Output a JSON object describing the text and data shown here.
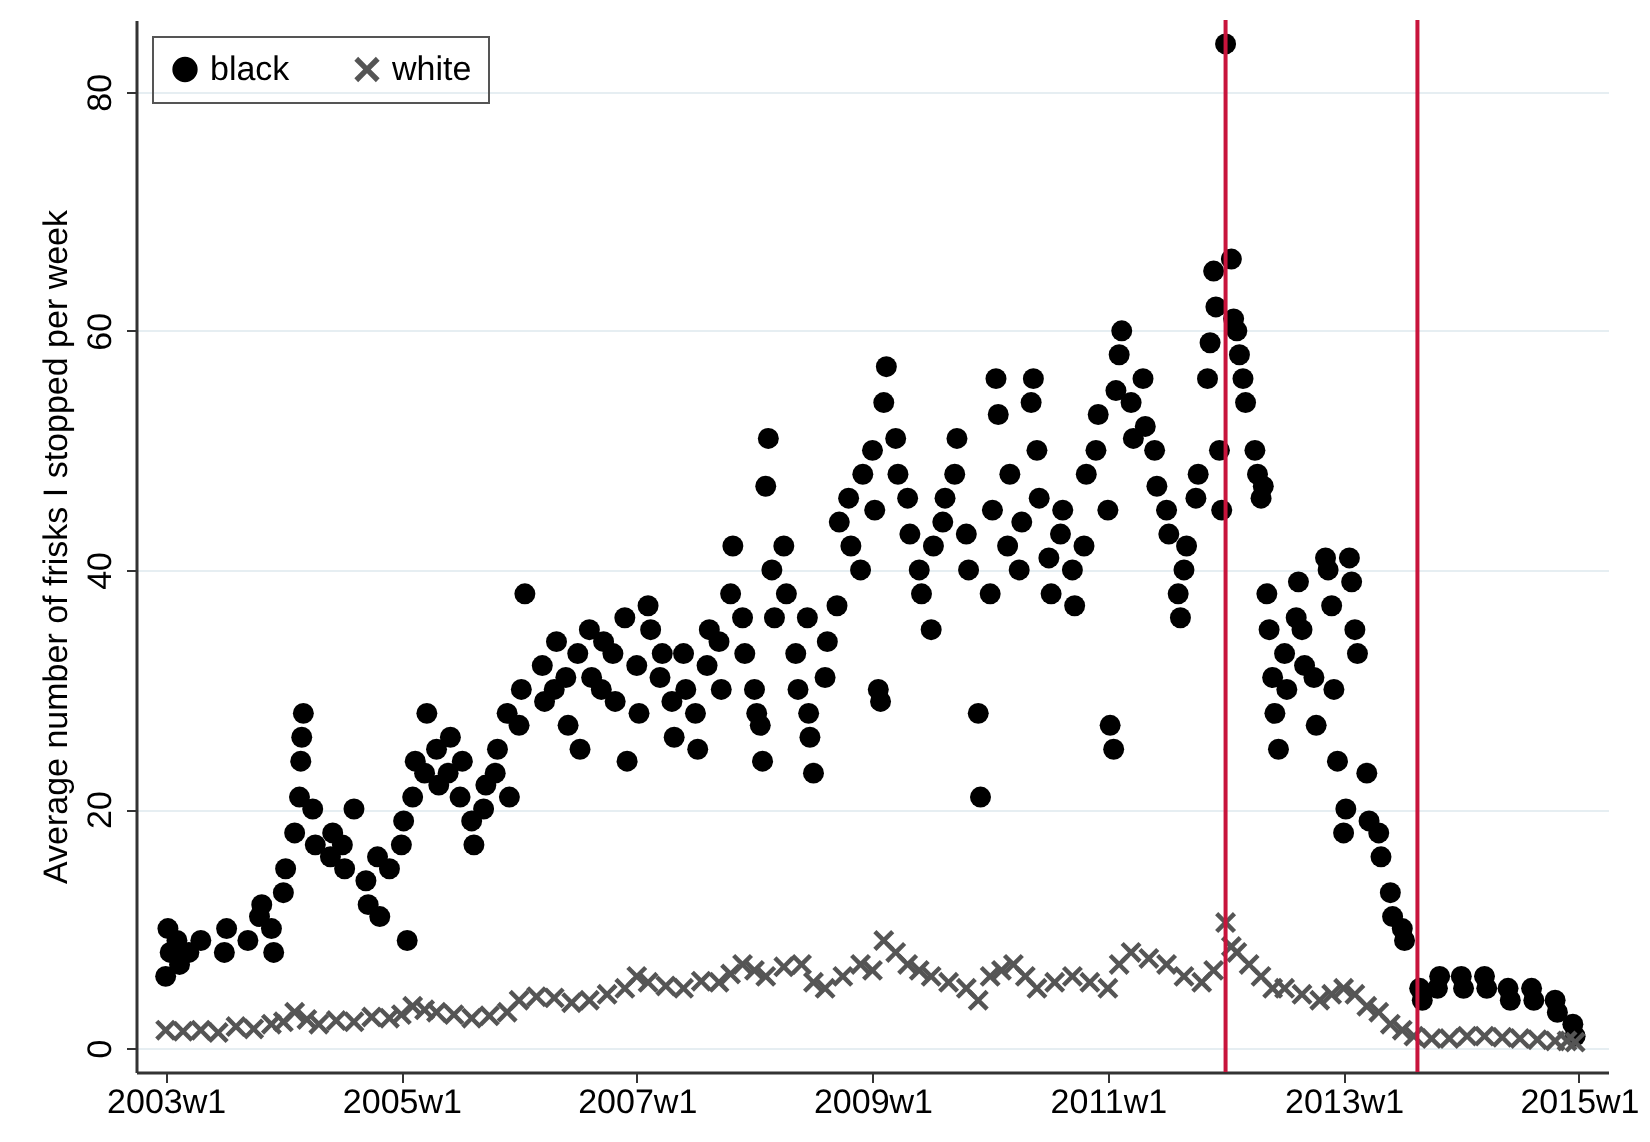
{
  "chart_data": {
    "type": "scatter",
    "ylabel": "Average number of frisks I stopped per week",
    "xlim": [
      "2002-10-01",
      "2015-04-01"
    ],
    "ylim": [
      -2,
      86
    ],
    "xticks": [
      {
        "value": "2003-01-01",
        "label": "2003w1"
      },
      {
        "value": "2005-01-01",
        "label": "2005w1"
      },
      {
        "value": "2007-01-01",
        "label": "2007w1"
      },
      {
        "value": "2009-01-01",
        "label": "2009w1"
      },
      {
        "value": "2011-01-01",
        "label": "2011w1"
      },
      {
        "value": "2013-01-01",
        "label": "2013w1"
      },
      {
        "value": "2015-01-01",
        "label": "2015w1"
      }
    ],
    "yticks": [
      0,
      20,
      40,
      60,
      80
    ],
    "grid": "y",
    "legend": "top left",
    "ref_lines": [
      {
        "axis": "x",
        "value": "2012-01-01",
        "color": "#c8143c"
      },
      {
        "axis": "x",
        "value": "2013-08-18",
        "color": "#c8143c"
      }
    ],
    "series": [
      {
        "name": "black",
        "color": "#000000",
        "marker": "circle",
        "x": [
          "2003-01-01",
          "2003-01-08",
          "2003-01-15",
          "2003-02-05",
          "2003-02-13",
          "2003-03-14",
          "2003-04-20",
          "2003-07-02",
          "2003-07-09",
          "2003-09-13",
          "2003-10-19",
          "2003-10-26",
          "2003-11-25",
          "2003-12-02",
          "2004-01-01",
          "2004-01-08",
          "2004-02-05",
          "2004-02-20",
          "2004-02-24",
          "2004-02-27",
          "2004-03-03",
          "2004-04-01",
          "2004-04-09",
          "2004-05-26",
          "2004-06-02",
          "2004-07-02",
          "2004-07-09",
          "2004-08-07",
          "2004-09-13",
          "2004-09-20",
          "2004-10-19",
          "2004-10-26",
          "2004-11-25",
          "2005-01-01",
          "2005-01-08",
          "2005-01-19",
          "2005-02-05",
          "2005-02-13",
          "2005-03-14",
          "2005-03-21",
          "2005-04-20",
          "2005-04-27",
          "2005-05-26",
          "2005-06-02",
          "2005-07-02",
          "2005-07-09",
          "2005-08-07",
          "2005-08-14",
          "2005-09-13",
          "2005-09-20",
          "2005-10-19",
          "2005-10-26",
          "2005-11-25",
          "2005-12-02",
          "2006-01-01",
          "2006-01-08",
          "2006-01-19",
          "2006-03-14",
          "2006-03-21",
          "2006-04-20",
          "2006-04-27",
          "2006-05-26",
          "2006-06-02",
          "2006-07-02",
          "2006-07-09",
          "2006-08-07",
          "2006-08-14",
          "2006-09-13",
          "2006-09-20",
          "2006-10-19",
          "2006-10-26",
          "2006-11-25",
          "2006-12-02",
          "2007-01-01",
          "2007-01-08",
          "2007-02-05",
          "2007-02-13",
          "2007-03-14",
          "2007-03-21",
          "2007-04-20",
          "2007-04-27",
          "2007-05-26",
          "2007-06-02",
          "2007-07-02",
          "2007-07-09",
          "2007-08-07",
          "2007-08-14",
          "2007-09-13",
          "2007-09-20",
          "2007-10-19",
          "2007-10-26",
          "2007-11-25",
          "2007-12-02",
          "2008-01-01",
          "2008-01-08",
          "2008-01-19",
          "2008-01-26",
          "2008-02-05",
          "2008-02-13",
          "2008-02-24",
          "2008-03-03",
          "2008-04-01",
          "2008-04-09",
          "2008-05-08",
          "2008-05-15",
          "2008-06-13",
          "2008-06-17",
          "2008-06-21",
          "2008-07-02",
          "2008-08-07",
          "2008-08-14",
          "2008-09-13",
          "2008-09-20",
          "2008-10-19",
          "2008-10-26",
          "2008-11-25",
          "2008-12-02",
          "2009-01-01",
          "2009-01-08",
          "2009-01-19",
          "2009-01-26",
          "2009-02-05",
          "2009-02-13",
          "2009-03-14",
          "2009-03-21",
          "2009-04-20",
          "2009-04-27",
          "2009-05-26",
          "2009-06-02",
          "2009-07-02",
          "2009-07-09",
          "2009-08-07",
          "2009-08-14",
          "2009-09-13",
          "2009-09-20",
          "2009-10-19",
          "2009-10-26",
          "2009-11-25",
          "2009-12-02",
          "2010-01-01",
          "2010-01-08",
          "2010-01-19",
          "2010-01-26",
          "2010-02-24",
          "2010-03-03",
          "2010-04-01",
          "2010-04-09",
          "2010-05-08",
          "2010-05-15",
          "2010-05-26",
          "2010-06-02",
          "2010-07-02",
          "2010-07-09",
          "2010-08-07",
          "2010-08-14",
          "2010-09-13",
          "2010-09-20",
          "2010-10-19",
          "2010-10-26",
          "2010-11-25",
          "2010-12-02",
          "2011-01-01",
          "2011-01-08",
          "2011-01-19",
          "2011-01-26",
          "2011-02-05",
          "2011-02-13",
          "2011-03-14",
          "2011-03-21",
          "2011-04-20",
          "2011-04-27",
          "2011-05-26",
          "2011-06-02",
          "2011-07-02",
          "2011-07-09",
          "2011-08-07",
          "2011-08-14",
          "2011-08-25",
          "2011-09-02",
          "2011-10-01",
          "2011-10-08",
          "2011-11-06",
          "2011-11-14",
          "2011-11-25",
          "2011-12-02",
          "2011-12-13",
          "2011-12-20",
          "2012-01-01",
          "2012-01-19",
          "2012-01-26",
          "2012-02-05",
          "2012-02-13",
          "2012-02-24",
          "2012-03-03",
          "2012-04-01",
          "2012-04-09",
          "2012-04-20",
          "2012-04-27",
          "2012-05-08",
          "2012-05-15",
          "2012-05-26",
          "2012-06-02",
          "2012-06-13",
          "2012-07-02",
          "2012-07-09",
          "2012-08-07",
          "2012-08-14",
          "2012-08-25",
          "2012-09-02",
          "2012-10-01",
          "2012-10-08",
          "2012-11-06",
          "2012-11-14",
          "2012-11-25",
          "2012-12-02",
          "2012-12-13",
          "2013-01-01",
          "2013-01-08",
          "2013-01-19",
          "2013-01-26",
          "2013-02-05",
          "2013-02-13",
          "2013-03-14",
          "2013-03-21",
          "2013-04-20",
          "2013-04-27",
          "2013-05-26",
          "2013-06-02",
          "2013-07-02",
          "2013-07-09",
          "2013-08-25",
          "2013-09-02",
          "2013-10-19",
          "2013-10-26",
          "2014-01-01",
          "2014-01-08",
          "2014-03-14",
          "2014-03-21",
          "2014-05-26",
          "2014-06-02",
          "2014-08-07",
          "2014-08-14",
          "2014-10-19",
          "2014-10-26",
          "2014-12-13",
          "2014-12-20"
        ],
        "values": [
          6,
          10,
          8,
          9,
          7,
          8,
          9,
          8,
          10,
          9,
          11,
          12,
          10,
          8,
          13,
          15,
          18,
          21,
          24,
          26,
          28,
          20,
          17,
          16,
          18,
          17,
          15,
          20,
          14,
          12,
          16,
          11,
          15,
          17,
          19,
          9,
          21,
          24,
          23,
          28,
          25,
          22,
          23,
          26,
          21,
          24,
          19,
          17,
          20,
          22,
          23,
          25,
          28,
          21,
          27,
          30,
          38,
          32,
          29,
          30,
          34,
          31,
          27,
          33,
          25,
          35,
          31,
          30,
          34,
          33,
          29,
          36,
          24,
          32,
          28,
          37,
          35,
          31,
          33,
          29,
          26,
          33,
          30,
          28,
          25,
          32,
          35,
          34,
          30,
          38,
          42,
          36,
          33,
          30,
          28,
          27,
          24,
          47,
          51,
          40,
          36,
          42,
          38,
          33,
          30,
          36,
          28,
          26,
          23,
          31,
          34,
          37,
          44,
          46,
          42,
          40,
          48,
          50,
          45,
          30,
          29,
          54,
          57,
          51,
          48,
          46,
          43,
          40,
          38,
          35,
          42,
          44,
          46,
          48,
          51,
          43,
          40,
          28,
          21,
          38,
          45,
          56,
          53,
          42,
          48,
          40,
          44,
          54,
          56,
          50,
          46,
          41,
          38,
          43,
          45,
          40,
          37,
          42,
          48,
          50,
          53,
          45,
          27,
          25,
          55,
          58,
          60,
          54,
          51,
          56,
          52,
          50,
          47,
          45,
          43,
          38,
          36,
          40,
          42,
          46,
          48,
          56,
          59,
          65,
          62,
          50,
          45,
          84,
          66,
          61,
          60,
          58,
          56,
          54,
          50,
          48,
          46,
          47,
          38,
          35,
          31,
          28,
          25,
          33,
          30,
          36,
          39,
          35,
          32,
          31,
          27,
          41,
          40,
          37,
          30,
          24,
          18,
          20,
          41,
          39,
          35,
          33,
          23,
          19,
          18,
          16,
          13,
          11,
          10,
          9,
          5,
          4,
          5,
          6,
          6,
          5,
          6,
          5,
          5,
          4,
          5,
          4,
          4,
          3,
          2,
          1
        ]
      },
      {
        "name": "white",
        "color": "#555555",
        "marker": "cross",
        "x": [
          "2003-01-01",
          "2003-02-24",
          "2003-04-20",
          "2003-06-13",
          "2003-08-07",
          "2003-10-01",
          "2003-11-25",
          "2004-01-01",
          "2004-02-05",
          "2004-03-14",
          "2004-04-20",
          "2004-06-13",
          "2004-08-07",
          "2004-10-01",
          "2004-11-25",
          "2005-01-01",
          "2005-02-05",
          "2005-03-14",
          "2005-04-20",
          "2005-06-13",
          "2005-08-07",
          "2005-10-01",
          "2005-11-25",
          "2006-01-01",
          "2006-02-24",
          "2006-04-20",
          "2006-06-13",
          "2006-08-07",
          "2006-10-01",
          "2006-11-25",
          "2007-01-01",
          "2007-02-05",
          "2007-04-01",
          "2007-05-26",
          "2007-07-20",
          "2007-09-13",
          "2007-10-19",
          "2007-11-25",
          "2008-01-01",
          "2008-02-05",
          "2008-04-01",
          "2008-05-26",
          "2008-07-02",
          "2008-08-07",
          "2008-10-01",
          "2008-11-25",
          "2009-01-01",
          "2009-02-05",
          "2009-03-14",
          "2009-04-20",
          "2009-05-26",
          "2009-07-02",
          "2009-08-25",
          "2009-10-19",
          "2009-11-25",
          "2010-01-01",
          "2010-02-05",
          "2010-03-14",
          "2010-04-20",
          "2010-05-26",
          "2010-07-20",
          "2010-09-13",
          "2010-11-06",
          "2011-01-01",
          "2011-02-05",
          "2011-03-14",
          "2011-05-08",
          "2011-07-02",
          "2011-08-25",
          "2011-10-19",
          "2011-11-25",
          "2012-01-01",
          "2012-01-19",
          "2012-02-05",
          "2012-03-14",
          "2012-04-20",
          "2012-05-26",
          "2012-07-02",
          "2012-08-25",
          "2012-10-19",
          "2012-11-25",
          "2013-01-01",
          "2013-02-05",
          "2013-03-14",
          "2013-04-20",
          "2013-05-26",
          "2013-07-02",
          "2013-08-07",
          "2013-10-01",
          "2013-11-25",
          "2014-01-19",
          "2014-03-14",
          "2014-05-08",
          "2014-07-02",
          "2014-08-25",
          "2014-10-19",
          "2014-11-25",
          "2014-12-20"
        ],
        "values": [
          1.5,
          1.4,
          1.5,
          1.3,
          1.8,
          1.6,
          2,
          2.2,
          3,
          2.4,
          2,
          2.3,
          2.2,
          2.6,
          2.5,
          2.8,
          3.5,
          3.2,
          3,
          2.8,
          2.5,
          2.7,
          3,
          4,
          4.3,
          4.2,
          3.8,
          4,
          4.5,
          5,
          6,
          5.5,
          5.2,
          5,
          5.6,
          5.5,
          6.2,
          7,
          6.5,
          6,
          6.8,
          7,
          5.5,
          5,
          6,
          7,
          6.5,
          9,
          8,
          7,
          6.5,
          6,
          5.5,
          5,
          4,
          6,
          6.5,
          7,
          6,
          5,
          5.5,
          6,
          5.5,
          5,
          7,
          8,
          7.5,
          7,
          6,
          5.5,
          6.5,
          10.5,
          8.5,
          8,
          7,
          6,
          5,
          5,
          4.5,
          4,
          4.5,
          5,
          4.5,
          3.5,
          3,
          2,
          1.5,
          1,
          0.8,
          0.8,
          1,
          1,
          0.9,
          0.8,
          0.7,
          0.6,
          0.6,
          0.5
        ]
      }
    ]
  }
}
